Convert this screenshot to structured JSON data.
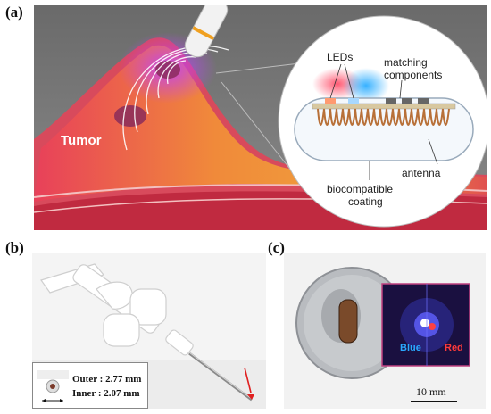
{
  "panels": {
    "a": {
      "label": "(a)",
      "tumor_label": "Tumor",
      "callouts": {
        "leds": "LEDs",
        "matching_line1": "matching",
        "matching_line2": "components",
        "antenna": "antenna",
        "coating_line1": "biocompatible",
        "coating_line2": "coating"
      }
    },
    "b": {
      "label": "(b)",
      "outer_label": "Outer : 2.77 mm",
      "inner_label": "Inner : 2.07 mm"
    },
    "c": {
      "label": "(c)",
      "blue_label": "Blue",
      "red_label": "Red",
      "scale_label": "10 mm"
    }
  },
  "colors": {
    "background_a": "#777777",
    "tissue_orange": "#f0a23c",
    "tissue_red": "#d2334a",
    "coil_copper": "#b87038",
    "led_blue": "#2aa8ff",
    "led_red": "#ff3a3a"
  }
}
